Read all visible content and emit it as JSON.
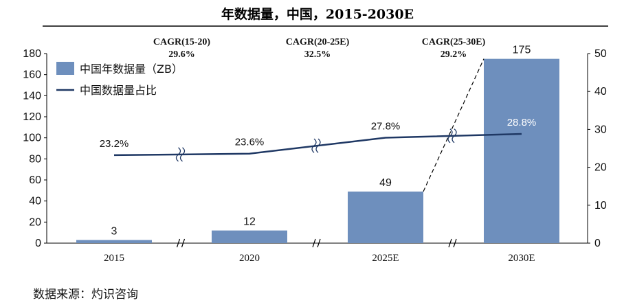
{
  "chart_data": {
    "type": "bar+line",
    "title": "年数据量，中国，2015-2030E",
    "categories": [
      "2015",
      "2020",
      "2025E",
      "2030E"
    ],
    "series": [
      {
        "name": "中国年数据量（ZB）",
        "type": "bar",
        "axis": "left",
        "values": [
          3,
          12,
          49,
          175
        ],
        "labels": [
          "3",
          "12",
          "49",
          "175"
        ]
      },
      {
        "name": "中国数据量占比",
        "type": "line",
        "axis": "right",
        "values": [
          23.2,
          23.6,
          27.8,
          28.8
        ],
        "labels": [
          "23.2%",
          "23.6%",
          "27.8%",
          "28.8%"
        ]
      }
    ],
    "ylim_left": [
      0,
      180
    ],
    "yticks_left": [
      0,
      20,
      40,
      60,
      80,
      100,
      120,
      140,
      160,
      180
    ],
    "ylim_right": [
      0,
      50
    ],
    "yticks_right": [
      0,
      10,
      20,
      30,
      40,
      50
    ],
    "cagr": [
      {
        "label": "CAGR(15-20)",
        "value": "29.6%"
      },
      {
        "label": "CAGR(20-25E)",
        "value": "32.5%"
      },
      {
        "label": "CAGR(25-30E)",
        "value": "29.2%"
      }
    ],
    "legend_position": "top-left",
    "grid": false,
    "colors": {
      "bar": "#6e8fbd",
      "line": "#1f3864",
      "axis": "#000000"
    }
  },
  "source": "数据来源：灼识咨询"
}
